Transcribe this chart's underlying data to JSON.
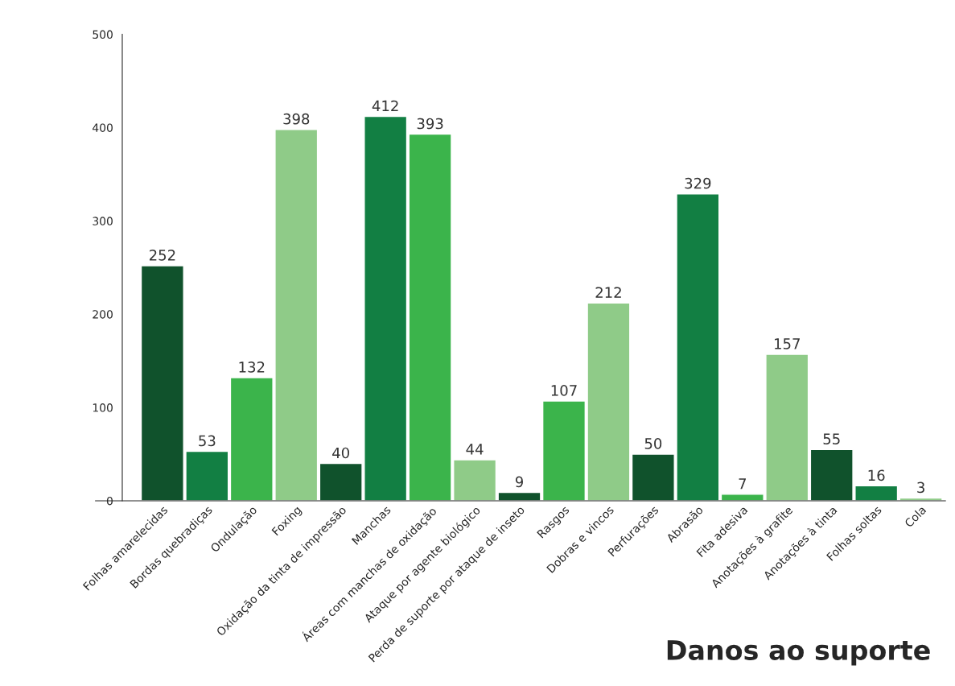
{
  "chart_data": {
    "type": "bar",
    "title": "Danos ao suporte",
    "categories": [
      "Folhas amarelecidas",
      "Bordas quebradiças",
      "Ondulação",
      "Foxing",
      "Oxidação da tinta de impressão",
      "Manchas",
      "Áreas com manchas de oxidação",
      "Ataque por agente biológico",
      "Perda de suporte por ataque de inseto",
      "Rasgos",
      "Dobras e vincos",
      "Perfurações",
      "Abrasão",
      "Fita adesiva",
      "Anotações à grafite",
      "Anotações à tinta",
      "Folhas soltas",
      "Cola"
    ],
    "values": [
      252,
      53,
      132,
      398,
      40,
      412,
      393,
      44,
      9,
      107,
      212,
      50,
      329,
      7,
      157,
      55,
      16,
      3
    ],
    "colors": [
      "#10522c",
      "#127f43",
      "#3bb44b",
      "#8fcb88",
      "#10522c",
      "#127f43",
      "#3bb44b",
      "#8fcb88",
      "#10522c",
      "#3bb44b",
      "#8fcb88",
      "#10522c",
      "#127f43",
      "#3bb44b",
      "#8fcb88",
      "#10522c",
      "#127f43",
      "#8fcb88"
    ],
    "ylim": [
      0,
      500
    ],
    "yticks": [
      0,
      100,
      200,
      300,
      400,
      500
    ],
    "data_labels": true,
    "grid": false,
    "legend": false
  }
}
